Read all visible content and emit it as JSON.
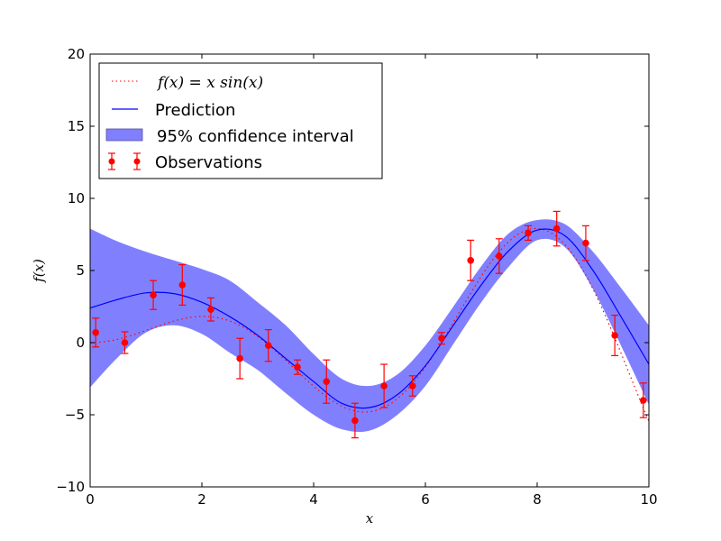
{
  "chart_data": {
    "type": "line",
    "title": "",
    "xlabel": "x",
    "ylabel": "f(x)",
    "xlim": [
      0,
      10
    ],
    "ylim": [
      -10,
      20
    ],
    "xticks": [
      "0",
      "2",
      "4",
      "6",
      "8",
      "10"
    ],
    "yticks": [
      "−10",
      "−5",
      "0",
      "5",
      "10",
      "15",
      "20"
    ],
    "grid": false,
    "legend_position": "top-left",
    "legend": [
      {
        "label": "f(x) = x sin(x)",
        "style": "dotted",
        "color": "#ff0000"
      },
      {
        "label": "Prediction",
        "style": "solid",
        "color": "#0000ff"
      },
      {
        "label": "95% confidence interval",
        "style": "fill",
        "color": "#8080ff"
      },
      {
        "label": "Observations",
        "style": "errorbar",
        "color": "#ff0000"
      }
    ],
    "true_function": {
      "expression": "x*sin(x)",
      "color": "#ff0000"
    },
    "prediction": {
      "color": "#0000ff",
      "x": [
        0,
        0.5,
        1,
        1.5,
        2,
        2.5,
        3,
        3.5,
        4,
        4.5,
        5,
        5.5,
        6,
        6.5,
        7,
        7.5,
        8,
        8.5,
        9,
        9.5,
        10
      ],
      "y": [
        2.4,
        3.0,
        3.45,
        3.4,
        2.8,
        1.8,
        0.5,
        -1.1,
        -2.7,
        -4.2,
        -4.5,
        -3.6,
        -1.6,
        1.2,
        4.0,
        6.4,
        7.8,
        7.4,
        5.0,
        1.8,
        -1.5
      ]
    },
    "confidence_interval": {
      "color": "#8080ff",
      "upper": [
        7.9,
        7.0,
        6.3,
        5.7,
        5.1,
        4.3,
        2.8,
        1.2,
        -0.8,
        -2.5,
        -3.0,
        -2.2,
        -0.2,
        2.5,
        5.3,
        7.6,
        8.5,
        8.2,
        6.3,
        3.8,
        1.2
      ],
      "lower": [
        -3.1,
        -1.0,
        0.7,
        1.2,
        0.6,
        -0.7,
        -1.9,
        -3.5,
        -5.0,
        -6.0,
        -6.1,
        -5.0,
        -3.0,
        -0.1,
        2.8,
        5.3,
        7.1,
        6.6,
        3.7,
        -0.2,
        -4.3
      ]
    },
    "observations": {
      "color": "#ff0000",
      "x": [
        0.1,
        0.62,
        1.13,
        1.65,
        2.16,
        2.68,
        3.19,
        3.71,
        4.23,
        4.74,
        5.26,
        5.77,
        6.29,
        6.81,
        7.32,
        7.84,
        8.35,
        8.87,
        9.39,
        9.9
      ],
      "y": [
        0.7,
        0.0,
        3.3,
        4.0,
        2.3,
        -1.1,
        -0.2,
        -1.7,
        -2.7,
        -5.4,
        -3.0,
        -3.0,
        0.3,
        5.7,
        6.0,
        7.6,
        7.9,
        6.9,
        0.5,
        -4.0
      ],
      "err": [
        1.0,
        0.75,
        1.0,
        1.4,
        0.8,
        1.4,
        1.1,
        0.5,
        1.5,
        1.2,
        1.5,
        0.7,
        0.4,
        1.4,
        1.2,
        0.5,
        1.2,
        1.2,
        1.4,
        1.2
      ]
    }
  }
}
